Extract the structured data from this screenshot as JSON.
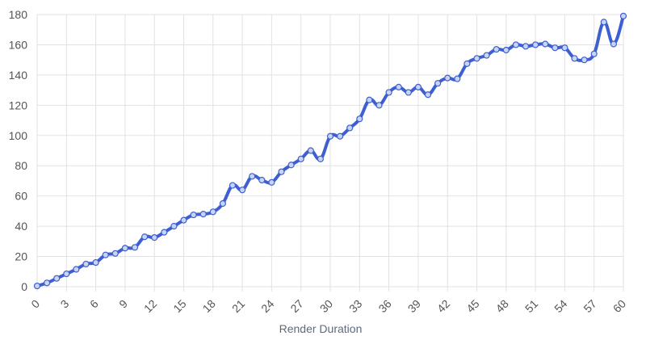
{
  "chart_data": {
    "type": "line",
    "x_label": "Render Duration",
    "x": [
      0,
      1,
      2,
      3,
      4,
      5,
      6,
      7,
      8,
      9,
      10,
      11,
      12,
      13,
      14,
      15,
      16,
      17,
      18,
      19,
      20,
      21,
      22,
      23,
      24,
      25,
      26,
      27,
      28,
      29,
      30,
      31,
      32,
      33,
      34,
      35,
      36,
      37,
      38,
      39,
      40,
      41,
      42,
      43,
      44,
      45,
      46,
      47,
      48,
      49,
      50,
      51,
      52,
      53,
      54,
      55,
      56,
      57,
      58,
      59,
      60
    ],
    "values": [
      0.5,
      2.5,
      5.5,
      8.5,
      11.5,
      15,
      16,
      21,
      22,
      25.5,
      26,
      33,
      32.5,
      36,
      40,
      44,
      47.5,
      48,
      49.5,
      55,
      67,
      64,
      73,
      70.5,
      69,
      76,
      80.5,
      84.5,
      90,
      84.5,
      99.5,
      99.5,
      105,
      111,
      123.5,
      120,
      128.5,
      132,
      128.5,
      132,
      127,
      134.5,
      138,
      137.5,
      147.5,
      151,
      153,
      157,
      156.5,
      160,
      159,
      160,
      160.5,
      158,
      158,
      151,
      150,
      154,
      175,
      160.5,
      179
    ],
    "color": "#3d5fd1",
    "xlim": [
      0,
      60
    ],
    "xticks": [
      0,
      3,
      6,
      9,
      12,
      15,
      18,
      21,
      24,
      27,
      30,
      33,
      36,
      39,
      42,
      45,
      48,
      51,
      54,
      57,
      60
    ],
    "ylim": [
      0,
      180
    ],
    "yticks": [
      0,
      20,
      40,
      60,
      80,
      100,
      120,
      140,
      160,
      180
    ],
    "grid": true
  }
}
